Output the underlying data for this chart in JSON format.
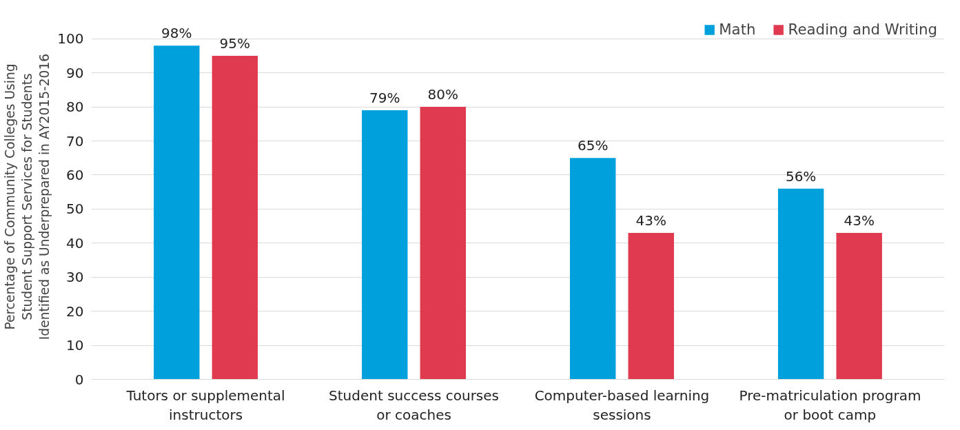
{
  "chart_data": {
    "type": "bar",
    "ylabel": "Percentage of Community Colleges Using Student Support Services for Students Identified as Underprepared in AY2015-2016",
    "categories": [
      "Tutors or supplemental instructors",
      "Student success courses or coaches",
      "Computer-based learning sessions",
      "Pre-matriculation program or boot camp"
    ],
    "series": [
      {
        "name": "Math",
        "color": "#00a0dc",
        "values": [
          98,
          79,
          65,
          56
        ],
        "value_labels": [
          "98%",
          "79%",
          "65%",
          "56%"
        ]
      },
      {
        "name": "Reading and Writing",
        "color": "#e03a50",
        "values": [
          95,
          80,
          43,
          43
        ],
        "value_labels": [
          "95%",
          "80%",
          "43%",
          "43%"
        ]
      }
    ],
    "ylim": [
      0,
      100
    ],
    "yticks": [
      0,
      10,
      20,
      30,
      40,
      50,
      60,
      70,
      80,
      90,
      100
    ],
    "grid": "y",
    "legend": "top right"
  }
}
